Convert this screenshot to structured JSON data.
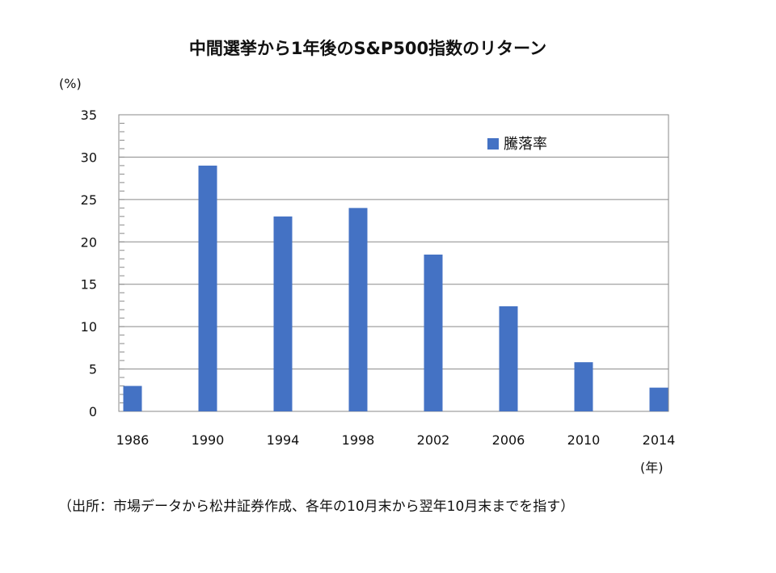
{
  "chart_data": {
    "type": "bar",
    "title": "中間選挙から1年後のS&P500指数のリターン",
    "y_unit_label": "(%)",
    "x_unit_label": "(年)",
    "categories": [
      "1986",
      "1990",
      "1994",
      "1998",
      "2002",
      "2006",
      "2010",
      "2014"
    ],
    "series": [
      {
        "name": "騰落率",
        "values": [
          3,
          29,
          23,
          24,
          18.5,
          12.4,
          5.8,
          2.8
        ],
        "color": "#4472c4"
      }
    ],
    "ylim": [
      0,
      35
    ],
    "yticks": [
      0,
      5,
      10,
      15,
      20,
      25,
      30,
      35
    ],
    "grid": true,
    "legend_position": "top-right"
  },
  "source_note": "（出所：市場データから松井証券作成、各年の10月末から翌年10月末までを指す）"
}
